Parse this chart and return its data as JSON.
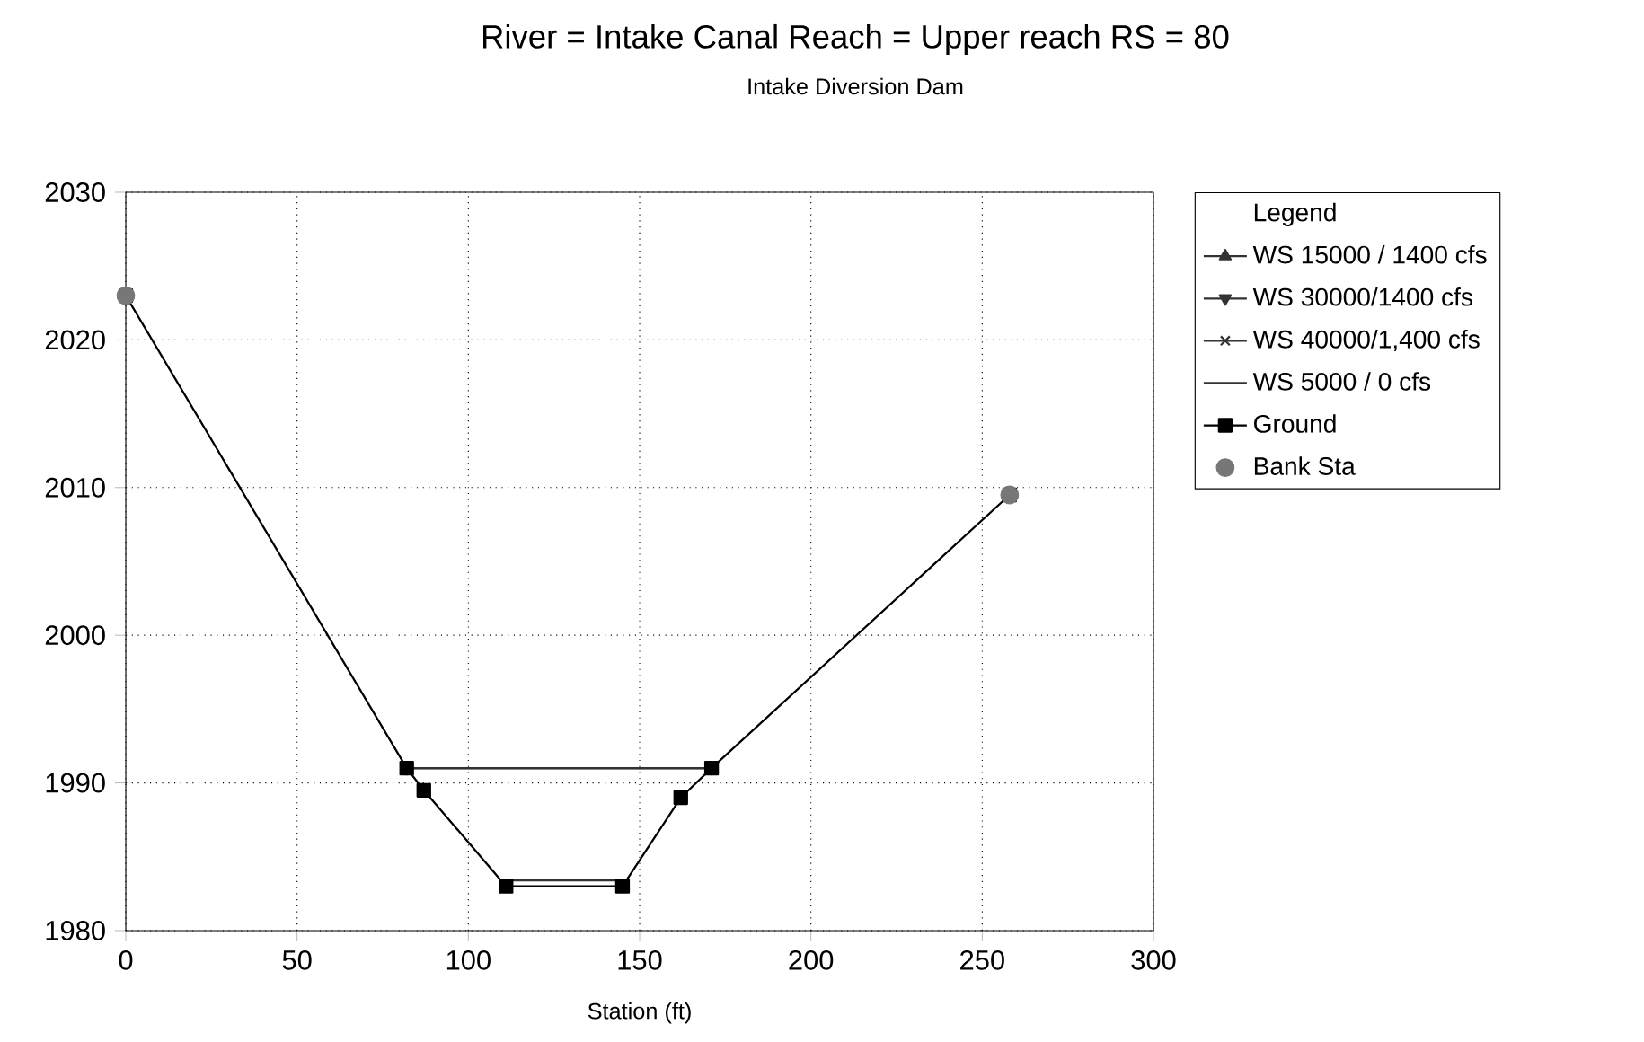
{
  "chart_data": {
    "type": "line",
    "title": "River = Intake Canal   Reach = Upper reach      RS = 80",
    "subtitle": "Intake Diversion Dam",
    "xlabel": "Station (ft)",
    "legend_title": "Legend",
    "xlim": [
      0,
      300
    ],
    "ylim": [
      1980,
      2030
    ],
    "xticks": [
      0,
      50,
      100,
      150,
      200,
      250,
      300
    ],
    "yticks": [
      1980,
      1990,
      2000,
      2010,
      2020,
      2030
    ],
    "grid": true,
    "legend": "right",
    "series": [
      {
        "name": "WS 15000 / 1400 cfs",
        "color": "#333333",
        "marker": "triangle",
        "x": [
          82,
          171
        ],
        "values": [
          1991,
          1991
        ]
      },
      {
        "name": "WS 30000/1400 cfs",
        "color": "#333333",
        "marker": "triangle down",
        "x": [
          82,
          171
        ],
        "values": [
          1991,
          1991
        ]
      },
      {
        "name": "WS 40000/1,400 cfs",
        "color": "#333333",
        "marker": "cross",
        "x": [
          82,
          171
        ],
        "values": [
          1991,
          1991
        ]
      },
      {
        "name": "WS 5000 / 0 cfs",
        "color": "#333333",
        "marker": "none",
        "x": [
          111,
          145
        ],
        "values": [
          1983.4,
          1983.4
        ]
      },
      {
        "name": "Ground",
        "color": "#000000",
        "marker": "square",
        "x": [
          0,
          82,
          87,
          111,
          145,
          162,
          171,
          258
        ],
        "values": [
          2023,
          1991,
          1989.5,
          1983,
          1983,
          1989,
          1991,
          2009.5
        ]
      },
      {
        "name": "Bank Sta",
        "type": "scatter",
        "color": "#777777",
        "marker": "circle",
        "x": [
          0,
          258
        ],
        "values": [
          2023,
          2009.5
        ]
      }
    ]
  }
}
